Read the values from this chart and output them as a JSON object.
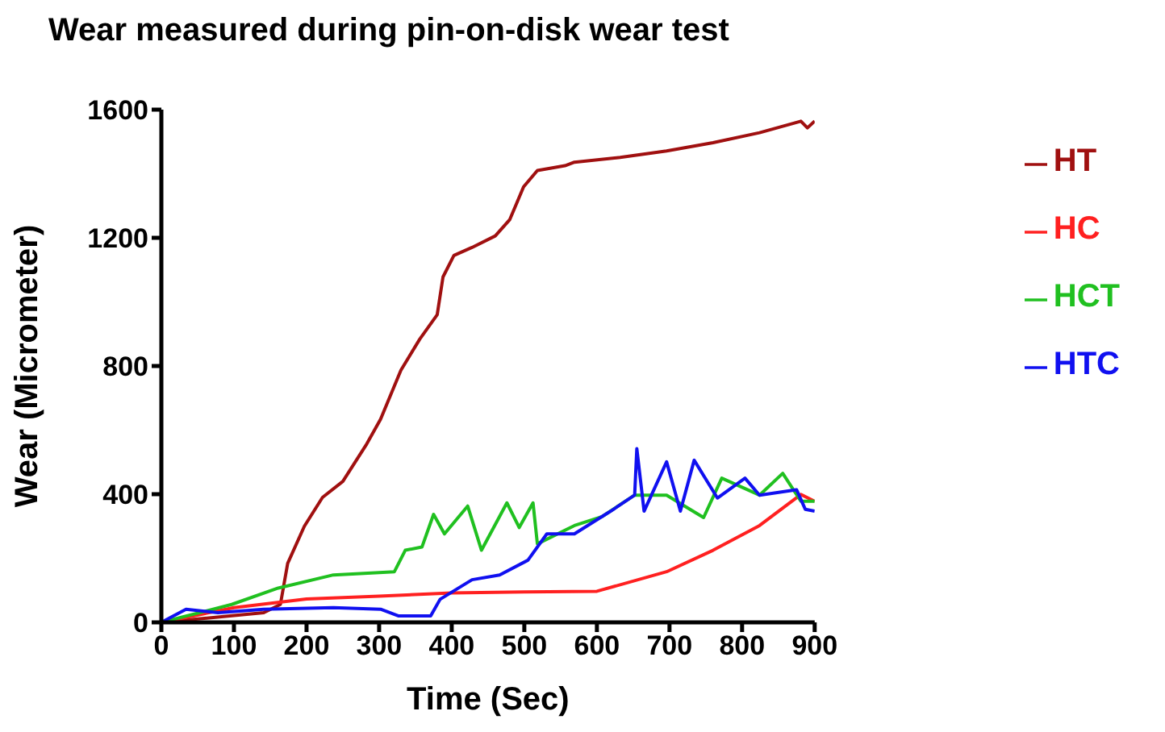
{
  "chart_data": {
    "type": "line",
    "title": "Wear measured during pin-on-disk wear test",
    "xlabel": "Time (Sec)",
    "ylabel": "Wear (Micrometer)",
    "xlim": [
      0,
      900
    ],
    "xticks": [
      0,
      100,
      200,
      300,
      400,
      500,
      600,
      700,
      800,
      900
    ],
    "ylim": [
      0,
      1600
    ],
    "yticks": [
      0,
      400,
      800,
      1200,
      1600
    ],
    "grid": false,
    "legend": "top right",
    "marker": "none",
    "line_style": "solid",
    "series": [
      {
        "name": "HT",
        "color": "#a01010",
        "x": [
          0,
          141,
          164,
          174,
          197,
          222,
          250,
          283,
          302,
          330,
          356,
          380,
          388,
          403,
          428,
          460,
          480,
          499,
          518,
          556,
          569,
          632,
          696,
          760,
          824,
          881,
          890,
          900
        ],
        "values": [
          0,
          30,
          56,
          184,
          300,
          390,
          440,
          557,
          634,
          787,
          884,
          960,
          1078,
          1145,
          1170,
          1206,
          1257,
          1359,
          1410,
          1425,
          1436,
          1451,
          1471,
          1497,
          1528,
          1564,
          1543,
          1564
        ]
      },
      {
        "name": "HC",
        "color": "#ff2020",
        "x": [
          0,
          100,
          200,
          300,
          400,
          500,
          600,
          696,
          760,
          824,
          881,
          900
        ],
        "values": [
          0,
          46,
          73,
          82,
          92,
          95,
          97,
          158,
          225,
          302,
          399,
          378
        ]
      },
      {
        "name": "HCT",
        "color": "#20c020",
        "x": [
          0,
          97,
          161,
          237,
          321,
          336,
          359,
          375,
          390,
          422,
          441,
          476,
          493,
          512,
          518,
          569,
          607,
          652,
          696,
          747,
          772,
          824,
          856,
          881,
          900
        ],
        "values": [
          0,
          56,
          107,
          148,
          158,
          225,
          235,
          337,
          276,
          363,
          225,
          373,
          296,
          373,
          245,
          302,
          330,
          397,
          397,
          327,
          450,
          397,
          465,
          378,
          378
        ]
      },
      {
        "name": "HTC",
        "color": "#1010f0",
        "x": [
          0,
          34,
          78,
          141,
          237,
          302,
          327,
          371,
          384,
          428,
          466,
          505,
          531,
          569,
          619,
          652,
          655,
          665,
          696,
          715,
          734,
          766,
          804,
          824,
          875,
          887,
          900
        ],
        "values": [
          0,
          41,
          30,
          41,
          46,
          41,
          20,
          20,
          72,
          133,
          148,
          194,
          276,
          276,
          347,
          397,
          542,
          347,
          501,
          347,
          506,
          388,
          450,
          397,
          414,
          353,
          347
        ]
      }
    ]
  }
}
